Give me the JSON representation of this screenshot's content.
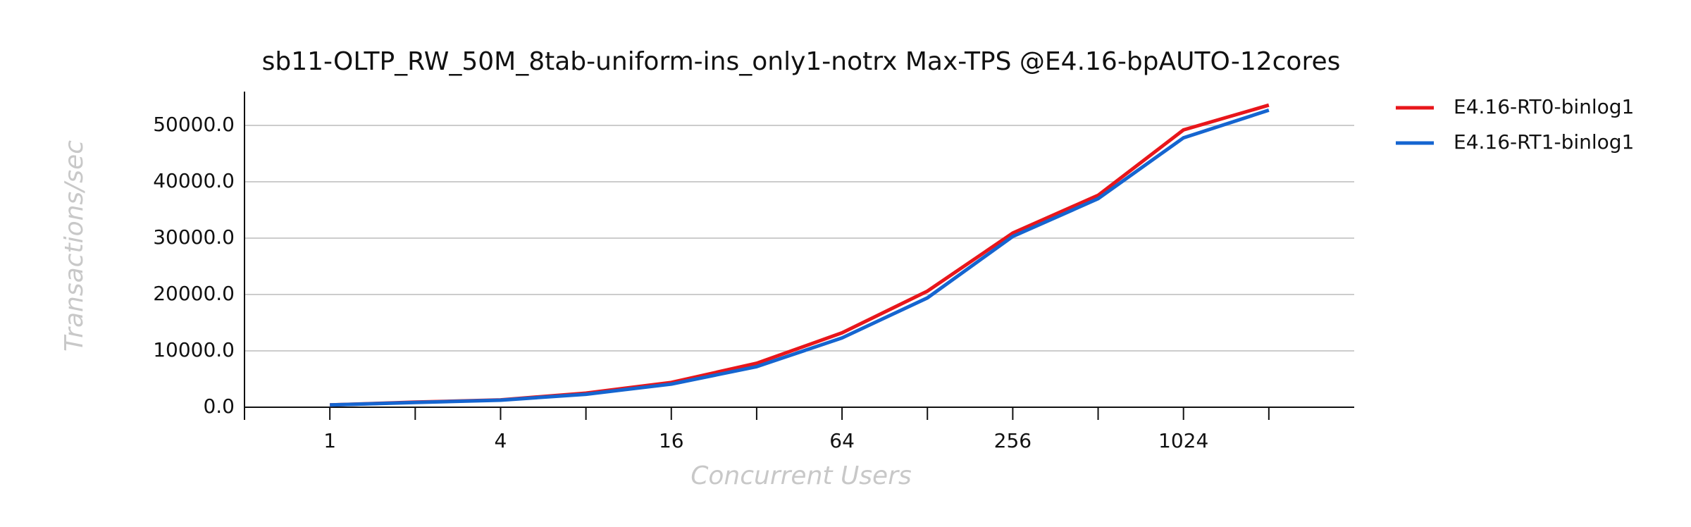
{
  "chart_data": {
    "type": "line",
    "title": "sb11-OLTP_RW_50M_8tab-uniform-ins_only1-notrx Max-TPS @E4.16-bpAUTO-12cores",
    "x_label": "Concurrent Users",
    "y_label": "Transactions/sec",
    "x": [
      1,
      2,
      4,
      8,
      16,
      32,
      64,
      128,
      256,
      512,
      1024,
      2048
    ],
    "x_scale": "log2",
    "series": [
      {
        "name": "E4.16-RT0-binlog1",
        "color": "#e8161b",
        "values": [
          400,
          900,
          1300,
          2500,
          4400,
          7800,
          13200,
          20600,
          30900,
          37600,
          49200,
          53600
        ]
      },
      {
        "name": "E4.16-RT1-binlog1",
        "color": "#1565d0",
        "values": [
          400,
          850,
          1250,
          2300,
          4100,
          7200,
          12300,
          19400,
          30300,
          37000,
          47800,
          52700
        ]
      }
    ],
    "xlim": [
      0.5,
      4096
    ],
    "xticks": [
      1,
      4,
      16,
      64,
      256,
      1024
    ],
    "xminor_ticks": [
      2,
      8,
      32,
      128,
      512,
      2048
    ],
    "ylim": [
      0,
      56000
    ],
    "yticks": [
      {
        "value": 0,
        "label": "0.0"
      },
      {
        "value": 10000,
        "label": "10000.0"
      },
      {
        "value": 20000,
        "label": "20000.0"
      },
      {
        "value": 30000,
        "label": "30000.0"
      },
      {
        "value": 40000,
        "label": "40000.0"
      },
      {
        "value": 50000,
        "label": "50000.0"
      }
    ],
    "grid": true,
    "legend": "outside-right"
  }
}
